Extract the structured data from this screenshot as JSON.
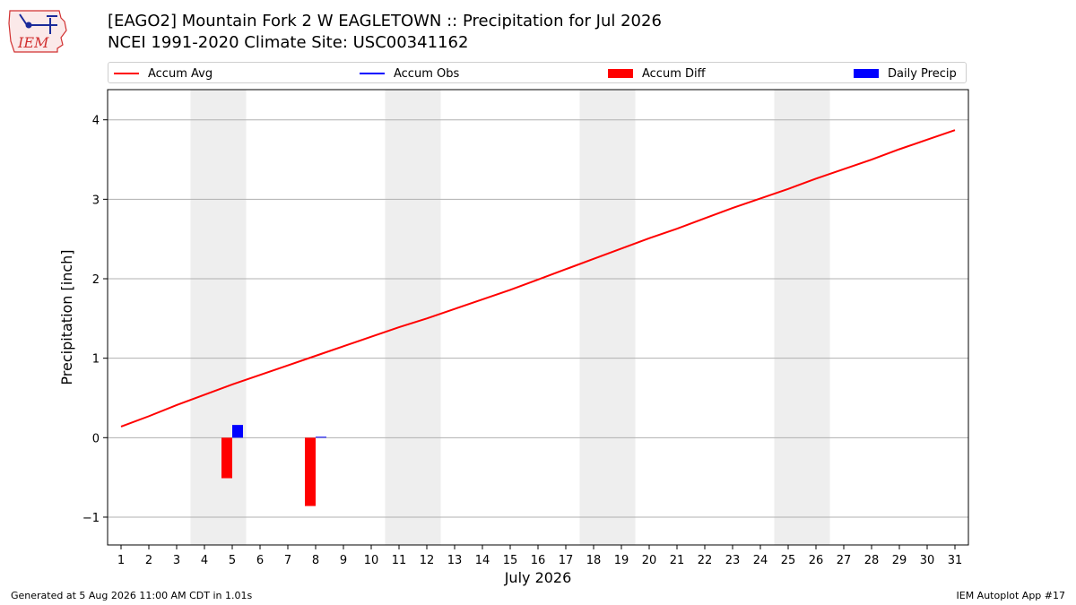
{
  "header": {
    "title": "[EAGO2] Mountain Fork 2 W EAGLETOWN :: Precipitation for Jul 2026",
    "subtitle": "NCEI 1991-2020 Climate Site: USC00341162"
  },
  "logo": {
    "text": "IEM"
  },
  "legend": [
    {
      "label": "Accum Avg",
      "kind": "line",
      "color": "#ff0000"
    },
    {
      "label": "Accum Obs",
      "kind": "line",
      "color": "#0000ff"
    },
    {
      "label": "Accum Diff",
      "kind": "box",
      "color": "#ff0000"
    },
    {
      "label": "Daily Precip",
      "kind": "box",
      "color": "#0000ff"
    }
  ],
  "footer": {
    "left": "Generated at 5 Aug 2026 11:00 AM CDT in 1.01s",
    "right": "IEM Autoplot App #17"
  },
  "chart_data": {
    "type": "line",
    "xlabel": "July 2026",
    "ylabel": "Precipitation [inch]",
    "ylim": [
      -1.35,
      4.38
    ],
    "yticks": [
      -1,
      0,
      1,
      2,
      3,
      4
    ],
    "ytick_labels": [
      "−1",
      "0",
      "1",
      "2",
      "3",
      "4"
    ],
    "x": [
      1,
      2,
      3,
      4,
      5,
      6,
      7,
      8,
      9,
      10,
      11,
      12,
      13,
      14,
      15,
      16,
      17,
      18,
      19,
      20,
      21,
      22,
      23,
      24,
      25,
      26,
      27,
      28,
      29,
      30,
      31
    ],
    "xtick_labels": [
      "1",
      "2",
      "3",
      "4",
      "5",
      "6",
      "7",
      "8",
      "9",
      "10",
      "11",
      "12",
      "13",
      "14",
      "15",
      "16",
      "17",
      "18",
      "19",
      "20",
      "21",
      "22",
      "23",
      "24",
      "25",
      "26",
      "27",
      "28",
      "29",
      "30",
      "31"
    ],
    "grid": "horizontal",
    "weekend_shading": [
      [
        4,
        5
      ],
      [
        11,
        12
      ],
      [
        18,
        19
      ],
      [
        25,
        26
      ]
    ],
    "series": [
      {
        "name": "Accum Avg",
        "type": "line",
        "color": "#ff0000",
        "values": [
          0.14,
          0.27,
          0.41,
          0.54,
          0.67,
          0.79,
          0.91,
          1.03,
          1.15,
          1.27,
          1.39,
          1.5,
          1.62,
          1.74,
          1.86,
          1.99,
          2.12,
          2.25,
          2.38,
          2.51,
          2.63,
          2.76,
          2.89,
          3.01,
          3.13,
          3.26,
          3.38,
          3.5,
          3.63,
          3.75,
          3.87
        ]
      },
      {
        "name": "Accum Diff",
        "type": "bar",
        "color": "#ff0000",
        "values": [
          null,
          null,
          null,
          null,
          -0.51,
          null,
          null,
          -0.86,
          null,
          null,
          null,
          null,
          null,
          null,
          null,
          null,
          null,
          null,
          null,
          null,
          null,
          null,
          null,
          null,
          null,
          null,
          null,
          null,
          null,
          null,
          null
        ]
      },
      {
        "name": "Daily Precip",
        "type": "bar",
        "color": "#0000ff",
        "values": [
          null,
          null,
          null,
          null,
          0.16,
          null,
          null,
          0.01,
          null,
          null,
          null,
          null,
          null,
          null,
          null,
          null,
          null,
          null,
          null,
          null,
          null,
          null,
          null,
          null,
          null,
          null,
          null,
          null,
          null,
          null,
          null
        ]
      }
    ]
  }
}
